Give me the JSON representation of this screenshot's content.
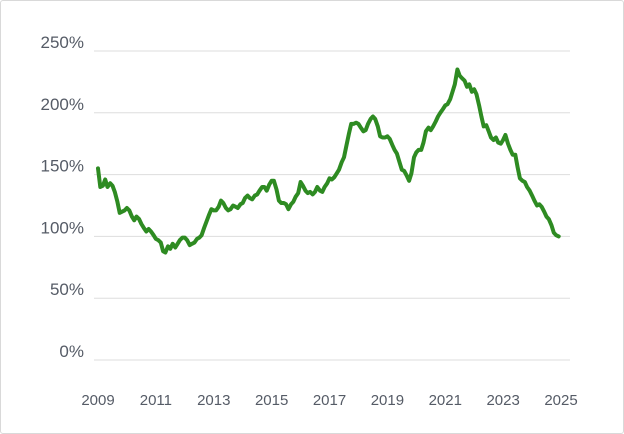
{
  "chart_data": {
    "type": "line",
    "title": "",
    "xlabel": "",
    "ylabel": "",
    "xlim": [
      2009,
      2025.2
    ],
    "ylim": [
      0,
      250
    ],
    "grid": true,
    "y_ticks": [
      0,
      50,
      100,
      150,
      200,
      250
    ],
    "y_tick_labels": [
      "0%",
      "50%",
      "100%",
      "150%",
      "200%",
      "250%"
    ],
    "x_ticks": [
      2009,
      2011,
      2013,
      2015,
      2017,
      2019,
      2021,
      2023,
      2025
    ],
    "x_tick_labels": [
      "2009",
      "2011",
      "2013",
      "2015",
      "2017",
      "2019",
      "2021",
      "2023",
      "2025"
    ],
    "colors": {
      "line": "#2e8b22",
      "grid": "#dddddd",
      "ticks": "#555b66"
    },
    "series": [
      {
        "values": [
          [
            2009.0,
            155
          ],
          [
            2009.08,
            140
          ],
          [
            2009.17,
            141
          ],
          [
            2009.25,
            146
          ],
          [
            2009.33,
            140
          ],
          [
            2009.42,
            143
          ],
          [
            2009.5,
            141
          ],
          [
            2009.58,
            136
          ],
          [
            2009.67,
            128
          ],
          [
            2009.75,
            119
          ],
          [
            2009.83,
            120
          ],
          [
            2009.92,
            121
          ],
          [
            2010.0,
            123
          ],
          [
            2010.08,
            121
          ],
          [
            2010.17,
            116
          ],
          [
            2010.25,
            113
          ],
          [
            2010.33,
            116
          ],
          [
            2010.42,
            114
          ],
          [
            2010.5,
            110
          ],
          [
            2010.58,
            107
          ],
          [
            2010.67,
            104
          ],
          [
            2010.75,
            106
          ],
          [
            2010.83,
            104
          ],
          [
            2010.92,
            101
          ],
          [
            2011.0,
            98
          ],
          [
            2011.08,
            97
          ],
          [
            2011.17,
            95
          ],
          [
            2011.25,
            88
          ],
          [
            2011.33,
            87
          ],
          [
            2011.42,
            92
          ],
          [
            2011.5,
            90
          ],
          [
            2011.58,
            94
          ],
          [
            2011.67,
            91
          ],
          [
            2011.75,
            94
          ],
          [
            2011.83,
            97
          ],
          [
            2011.92,
            99
          ],
          [
            2012.0,
            99
          ],
          [
            2012.08,
            97
          ],
          [
            2012.17,
            93
          ],
          [
            2012.25,
            94
          ],
          [
            2012.33,
            95
          ],
          [
            2012.42,
            98
          ],
          [
            2012.5,
            99
          ],
          [
            2012.58,
            101
          ],
          [
            2012.67,
            107
          ],
          [
            2012.75,
            112
          ],
          [
            2012.83,
            117
          ],
          [
            2012.92,
            122
          ],
          [
            2013.0,
            121
          ],
          [
            2013.08,
            121
          ],
          [
            2013.17,
            124
          ],
          [
            2013.25,
            129
          ],
          [
            2013.33,
            127
          ],
          [
            2013.42,
            123
          ],
          [
            2013.5,
            121
          ],
          [
            2013.58,
            122
          ],
          [
            2013.67,
            125
          ],
          [
            2013.75,
            124
          ],
          [
            2013.83,
            123
          ],
          [
            2013.92,
            126
          ],
          [
            2014.0,
            127
          ],
          [
            2014.08,
            131
          ],
          [
            2014.17,
            133
          ],
          [
            2014.25,
            131
          ],
          [
            2014.33,
            130
          ],
          [
            2014.42,
            133
          ],
          [
            2014.5,
            134
          ],
          [
            2014.58,
            137
          ],
          [
            2014.67,
            140
          ],
          [
            2014.75,
            140
          ],
          [
            2014.83,
            137
          ],
          [
            2014.92,
            142
          ],
          [
            2015.0,
            145
          ],
          [
            2015.08,
            145
          ],
          [
            2015.17,
            138
          ],
          [
            2015.25,
            129
          ],
          [
            2015.33,
            127
          ],
          [
            2015.42,
            127
          ],
          [
            2015.5,
            126
          ],
          [
            2015.58,
            122
          ],
          [
            2015.67,
            126
          ],
          [
            2015.75,
            128
          ],
          [
            2015.83,
            132
          ],
          [
            2015.92,
            135
          ],
          [
            2016.0,
            144
          ],
          [
            2016.08,
            141
          ],
          [
            2016.17,
            137
          ],
          [
            2016.25,
            135
          ],
          [
            2016.33,
            136
          ],
          [
            2016.42,
            134
          ],
          [
            2016.5,
            136
          ],
          [
            2016.58,
            140
          ],
          [
            2016.67,
            137
          ],
          [
            2016.75,
            136
          ],
          [
            2016.83,
            140
          ],
          [
            2016.92,
            143
          ],
          [
            2017.0,
            147
          ],
          [
            2017.08,
            146
          ],
          [
            2017.17,
            148
          ],
          [
            2017.25,
            151
          ],
          [
            2017.33,
            154
          ],
          [
            2017.42,
            160
          ],
          [
            2017.5,
            164
          ],
          [
            2017.58,
            173
          ],
          [
            2017.67,
            183
          ],
          [
            2017.75,
            191
          ],
          [
            2017.83,
            191
          ],
          [
            2017.92,
            192
          ],
          [
            2018.0,
            191
          ],
          [
            2018.08,
            188
          ],
          [
            2018.17,
            185
          ],
          [
            2018.25,
            186
          ],
          [
            2018.33,
            191
          ],
          [
            2018.42,
            195
          ],
          [
            2018.5,
            197
          ],
          [
            2018.58,
            195
          ],
          [
            2018.67,
            189
          ],
          [
            2018.75,
            181
          ],
          [
            2018.83,
            180
          ],
          [
            2018.92,
            180
          ],
          [
            2019.0,
            181
          ],
          [
            2019.08,
            179
          ],
          [
            2019.17,
            174
          ],
          [
            2019.25,
            170
          ],
          [
            2019.33,
            167
          ],
          [
            2019.42,
            160
          ],
          [
            2019.5,
            154
          ],
          [
            2019.58,
            153
          ],
          [
            2019.67,
            149
          ],
          [
            2019.75,
            145
          ],
          [
            2019.83,
            151
          ],
          [
            2019.92,
            164
          ],
          [
            2020.0,
            168
          ],
          [
            2020.08,
            170
          ],
          [
            2020.17,
            170
          ],
          [
            2020.25,
            176
          ],
          [
            2020.33,
            185
          ],
          [
            2020.42,
            188
          ],
          [
            2020.5,
            186
          ],
          [
            2020.58,
            189
          ],
          [
            2020.67,
            193
          ],
          [
            2020.75,
            197
          ],
          [
            2020.83,
            200
          ],
          [
            2020.92,
            203
          ],
          [
            2021.0,
            206
          ],
          [
            2021.08,
            207
          ],
          [
            2021.17,
            211
          ],
          [
            2021.25,
            217
          ],
          [
            2021.33,
            223
          ],
          [
            2021.42,
            235
          ],
          [
            2021.5,
            230
          ],
          [
            2021.58,
            228
          ],
          [
            2021.67,
            226
          ],
          [
            2021.75,
            221
          ],
          [
            2021.83,
            223
          ],
          [
            2021.92,
            217
          ],
          [
            2022.0,
            219
          ],
          [
            2022.08,
            215
          ],
          [
            2022.17,
            206
          ],
          [
            2022.25,
            197
          ],
          [
            2022.33,
            189
          ],
          [
            2022.42,
            190
          ],
          [
            2022.5,
            185
          ],
          [
            2022.58,
            180
          ],
          [
            2022.67,
            178
          ],
          [
            2022.75,
            180
          ],
          [
            2022.83,
            176
          ],
          [
            2022.92,
            175
          ],
          [
            2023.0,
            178
          ],
          [
            2023.08,
            182
          ],
          [
            2023.17,
            175
          ],
          [
            2023.25,
            170
          ],
          [
            2023.33,
            166
          ],
          [
            2023.42,
            166
          ],
          [
            2023.5,
            156
          ],
          [
            2023.58,
            147
          ],
          [
            2023.67,
            145
          ],
          [
            2023.75,
            144
          ],
          [
            2023.83,
            140
          ],
          [
            2023.92,
            137
          ],
          [
            2024.0,
            133
          ],
          [
            2024.08,
            129
          ],
          [
            2024.17,
            125
          ],
          [
            2024.25,
            126
          ],
          [
            2024.33,
            124
          ],
          [
            2024.42,
            120
          ],
          [
            2024.5,
            116
          ],
          [
            2024.58,
            114
          ],
          [
            2024.67,
            109
          ],
          [
            2024.75,
            103
          ],
          [
            2024.83,
            101
          ],
          [
            2024.92,
            100
          ]
        ]
      }
    ]
  }
}
